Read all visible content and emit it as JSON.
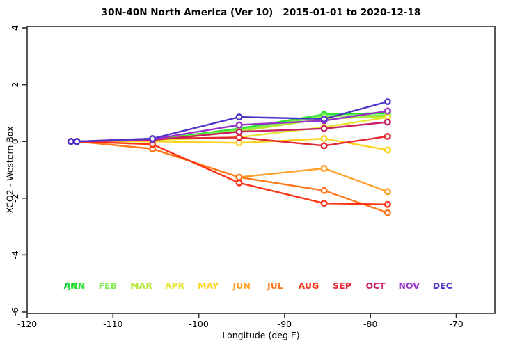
{
  "chart_data": {
    "type": "line",
    "title": "30N-40N North America (Ver 10)   2015-01-01 to 2020-12-18",
    "xlabel": "Longitude (deg E)",
    "ylabel": "XCO2 - Western Box",
    "xlim": [
      -120,
      -65.5
    ],
    "ylim": [
      -6.05,
      4.05
    ],
    "x_ticks": [
      -120,
      -110,
      -100,
      -90,
      -80,
      -70
    ],
    "y_ticks": [
      4,
      2,
      0,
      -2,
      -4,
      -6
    ],
    "grid": false,
    "marker": "open-circle",
    "legend_position": "inside-bottom",
    "legend_y": -5.1,
    "legend_x0": -114.5,
    "legend_step": 3.9,
    "x": [
      -114.9,
      -114.2,
      -105.4,
      -95.3,
      -85.4,
      -78.0
    ],
    "series": [
      {
        "name": "ANN",
        "color": "#00C832",
        "values": [
          0,
          0,
          0.05,
          0.45,
          0.95,
          1.0
        ]
      },
      {
        "name": "JAN",
        "color": "#2FE62F",
        "values": [
          0,
          0,
          0.05,
          0.45,
          0.95,
          1.0
        ]
      },
      {
        "name": "FEB",
        "color": "#7DEB4E",
        "values": [
          0,
          0,
          0.04,
          0.4,
          0.88,
          0.93
        ]
      },
      {
        "name": "MAR",
        "color": "#B4E632",
        "values": [
          0,
          0,
          0.02,
          0.35,
          0.8,
          0.88
        ]
      },
      {
        "name": "APR",
        "color": "#E6E632",
        "values": [
          0,
          0,
          0.05,
          0.15,
          0.5,
          0.85
        ]
      },
      {
        "name": "MAY",
        "color": "#FFD21E",
        "values": [
          0,
          0,
          0.0,
          -0.05,
          0.1,
          -0.3
        ]
      },
      {
        "name": "JUN",
        "color": "#FFA028",
        "values": [
          0,
          0,
          -0.26,
          -1.26,
          -0.95,
          -1.77
        ]
      },
      {
        "name": "JUL",
        "color": "#FF781E",
        "values": [
          0,
          0,
          -0.26,
          -1.26,
          -1.73,
          -2.51
        ]
      },
      {
        "name": "AUG",
        "color": "#FF3214",
        "values": [
          0,
          0,
          -0.1,
          -1.46,
          -2.18,
          -2.22
        ]
      },
      {
        "name": "SEP",
        "color": "#E62832",
        "values": [
          0,
          0,
          0.1,
          0.14,
          -0.15,
          0.18
        ]
      },
      {
        "name": "OCT",
        "color": "#C81E64",
        "values": [
          0,
          0,
          0.05,
          0.34,
          0.45,
          0.68
        ]
      },
      {
        "name": "NOV",
        "color": "#9632C8",
        "values": [
          0,
          0,
          0.08,
          0.58,
          0.73,
          1.07
        ]
      },
      {
        "name": "DEC",
        "color": "#5032C8",
        "values": [
          0,
          0,
          0.1,
          0.86,
          0.79,
          1.4
        ]
      }
    ],
    "legend": [
      {
        "label": "ANN",
        "color": "#00C832",
        "slot": 0,
        "dx": 0
      },
      {
        "label": "JAN",
        "color": "#2FE62F",
        "slot": 0,
        "dx": 0.25
      },
      {
        "label": "FEB",
        "color": "#7DEB4E",
        "slot": 1,
        "dx": 0
      },
      {
        "label": "MAR",
        "color": "#B4E632",
        "slot": 2,
        "dx": 0
      },
      {
        "label": "APR",
        "color": "#E6E632",
        "slot": 3,
        "dx": 0
      },
      {
        "label": "MAY",
        "color": "#FFD21E",
        "slot": 4,
        "dx": 0
      },
      {
        "label": "JUN",
        "color": "#FFA028",
        "slot": 5,
        "dx": 0
      },
      {
        "label": "JUL",
        "color": "#FF781E",
        "slot": 6,
        "dx": 0
      },
      {
        "label": "AUG",
        "color": "#FF3214",
        "slot": 7,
        "dx": 0
      },
      {
        "label": "SEP",
        "color": "#E62832",
        "slot": 8,
        "dx": 0
      },
      {
        "label": "OCT",
        "color": "#C81E64",
        "slot": 9,
        "dx": 0
      },
      {
        "label": "NOV",
        "color": "#9632C8",
        "slot": 10,
        "dx": 0
      },
      {
        "label": "DEC",
        "color": "#5032C8",
        "slot": 11,
        "dx": 0
      }
    ]
  }
}
